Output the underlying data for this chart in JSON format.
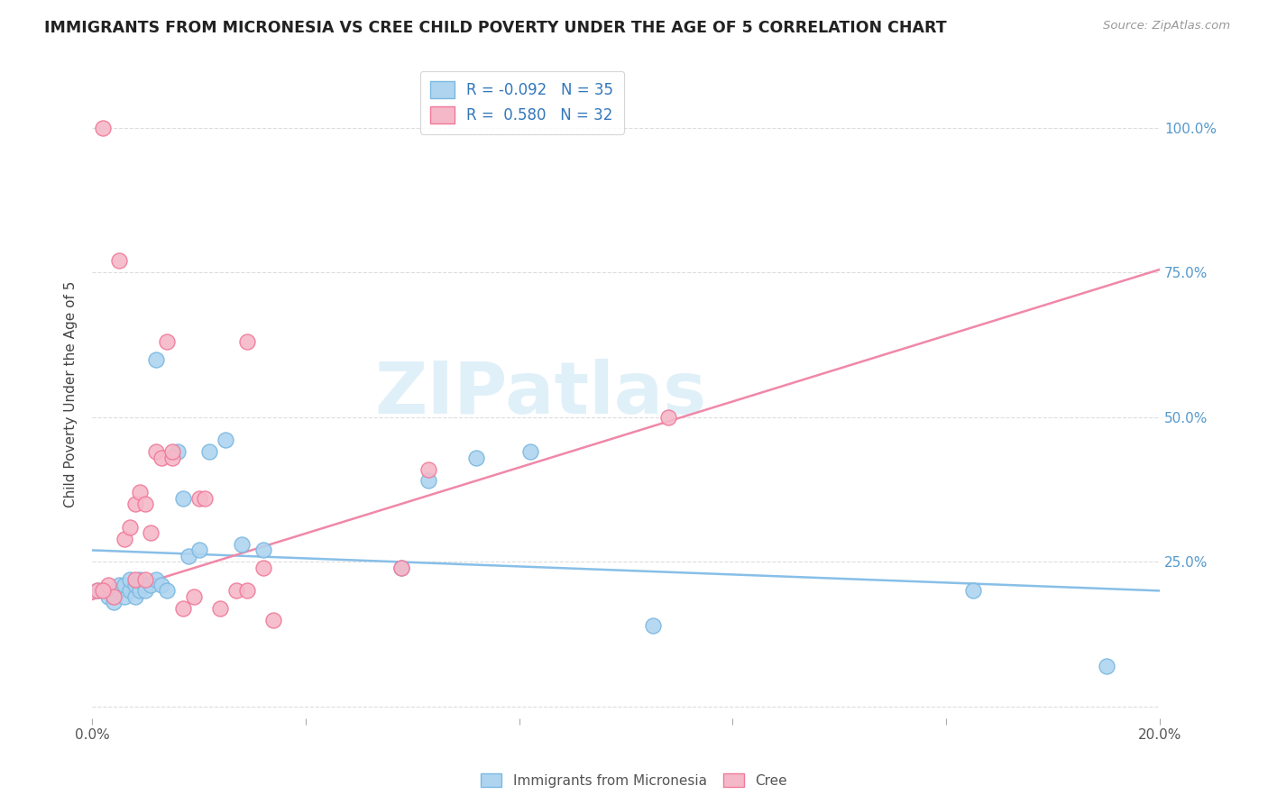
{
  "title": "IMMIGRANTS FROM MICRONESIA VS CREE CHILD POVERTY UNDER THE AGE OF 5 CORRELATION CHART",
  "source": "Source: ZipAtlas.com",
  "ylabel": "Child Poverty Under the Age of 5",
  "xlim": [
    0.0,
    0.2
  ],
  "ylim": [
    -0.02,
    1.1
  ],
  "yticks": [
    0.0,
    0.25,
    0.5,
    0.75,
    1.0
  ],
  "ytick_labels": [
    "",
    "25.0%",
    "50.0%",
    "75.0%",
    "100.0%"
  ],
  "xticks": [
    0.0,
    0.04,
    0.08,
    0.12,
    0.16,
    0.2
  ],
  "xtick_labels": [
    "0.0%",
    "",
    "",
    "",
    "",
    "20.0%"
  ],
  "blue_R": "-0.092",
  "blue_N": "35",
  "pink_R": "0.580",
  "pink_N": "32",
  "blue_color": "#aed4f0",
  "pink_color": "#f5b8c8",
  "blue_edge_color": "#7ab8e0",
  "pink_edge_color": "#f07898",
  "blue_line_color": "#88bfe8",
  "pink_line_color": "#f088a8",
  "watermark": "ZIPatlas",
  "blue_scatter_x": [
    0.001,
    0.003,
    0.004,
    0.005,
    0.005,
    0.006,
    0.006,
    0.007,
    0.007,
    0.008,
    0.008,
    0.009,
    0.009,
    0.01,
    0.01,
    0.011,
    0.012,
    0.012,
    0.013,
    0.014,
    0.016,
    0.017,
    0.018,
    0.02,
    0.022,
    0.025,
    0.028,
    0.032,
    0.058,
    0.063,
    0.072,
    0.082,
    0.105,
    0.165,
    0.19
  ],
  "blue_scatter_y": [
    0.2,
    0.19,
    0.18,
    0.2,
    0.21,
    0.19,
    0.21,
    0.2,
    0.22,
    0.19,
    0.21,
    0.2,
    0.22,
    0.21,
    0.2,
    0.21,
    0.22,
    0.6,
    0.21,
    0.2,
    0.44,
    0.36,
    0.26,
    0.27,
    0.44,
    0.46,
    0.28,
    0.27,
    0.24,
    0.39,
    0.43,
    0.44,
    0.14,
    0.2,
    0.07
  ],
  "pink_scatter_x": [
    0.001,
    0.002,
    0.003,
    0.004,
    0.005,
    0.006,
    0.007,
    0.008,
    0.008,
    0.009,
    0.01,
    0.01,
    0.011,
    0.012,
    0.013,
    0.014,
    0.015,
    0.015,
    0.017,
    0.019,
    0.02,
    0.021,
    0.024,
    0.027,
    0.029,
    0.029,
    0.032,
    0.034,
    0.058,
    0.063,
    0.108,
    0.002
  ],
  "pink_scatter_y": [
    0.2,
    1.0,
    0.21,
    0.19,
    0.77,
    0.29,
    0.31,
    0.35,
    0.22,
    0.37,
    0.22,
    0.35,
    0.3,
    0.44,
    0.43,
    0.63,
    0.43,
    0.44,
    0.17,
    0.19,
    0.36,
    0.36,
    0.17,
    0.2,
    0.63,
    0.2,
    0.24,
    0.15,
    0.24,
    0.41,
    0.5,
    0.2
  ],
  "blue_trend_x": [
    0.0,
    0.2
  ],
  "blue_trend_y": [
    0.27,
    0.2
  ],
  "pink_trend_x": [
    0.0,
    0.2
  ],
  "pink_trend_y": [
    0.185,
    0.755
  ]
}
